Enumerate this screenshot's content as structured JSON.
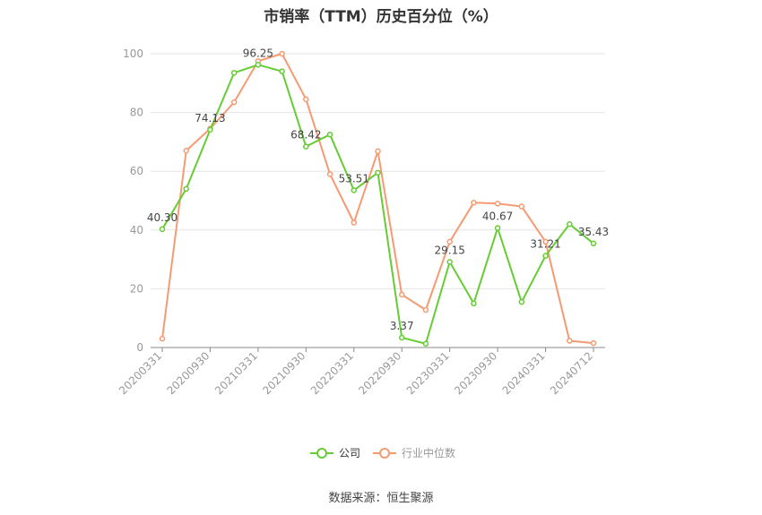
{
  "title": "市销率（TTM）历史百分位（%）",
  "source": "数据来源：恒生聚源",
  "colors": {
    "company": "#66cc33",
    "industry": "#f59a72",
    "grid": "#e5e5e5",
    "axis": "#999999",
    "label": "#444444"
  },
  "chart_data": {
    "type": "line",
    "title": "市销率（TTM）历史百分位（%）",
    "ylim": [
      0,
      100
    ],
    "yticks": [
      0,
      20,
      40,
      60,
      80,
      100
    ],
    "x_tick_labels": [
      "20200331",
      "20200930",
      "20210331",
      "20210930",
      "20220331",
      "20220930",
      "20230331",
      "20230930",
      "20240331",
      "20240712"
    ],
    "legend": {
      "position": "bottom-center"
    },
    "grid": true,
    "series": [
      {
        "name": "公司",
        "color": "#66cc33",
        "values": [
          40.3,
          54,
          74.13,
          93.5,
          96.25,
          94,
          68.42,
          72.5,
          53.51,
          59.5,
          3.37,
          1.3,
          29.15,
          15,
          40.67,
          15.5,
          31.21,
          42,
          35.43
        ],
        "labels": [
          "40.30",
          "",
          "74.13",
          "",
          "96.25",
          "",
          "68.42",
          "",
          "53.51",
          "",
          "3.37",
          "",
          "29.15",
          "",
          "40.67",
          "",
          "31.21",
          "",
          "35.43"
        ]
      },
      {
        "name": "行业中位数",
        "color": "#f59a72",
        "values": [
          3,
          67,
          74.5,
          83.5,
          97.5,
          100,
          84.5,
          59,
          42.5,
          66.8,
          18,
          12.8,
          36,
          49.3,
          49,
          48,
          36,
          2.3,
          1.5
        ],
        "labels": []
      }
    ]
  }
}
